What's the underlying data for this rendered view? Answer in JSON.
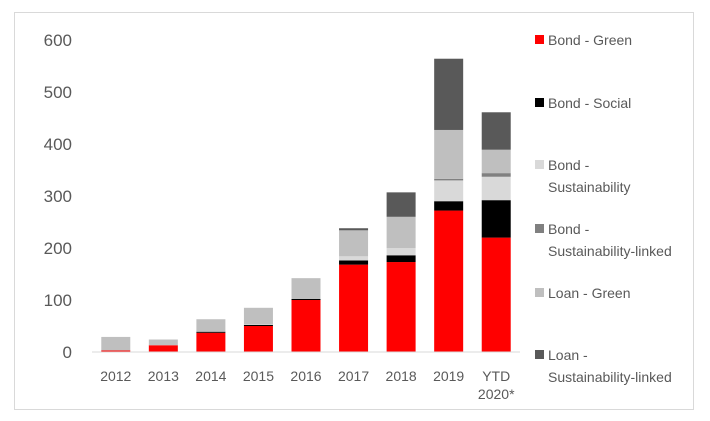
{
  "chart_data": {
    "type": "bar",
    "stacked": true,
    "title": "",
    "xlabel": "",
    "ylabel": "",
    "ylim": [
      0,
      600
    ],
    "yticks": [
      "0",
      "100",
      "200",
      "300",
      "400",
      "500",
      "600"
    ],
    "grid": false,
    "legend_position": "right",
    "categories": [
      "2012",
      "2013",
      "2014",
      "2015",
      "2016",
      "2017",
      "2018",
      "2019",
      "YTD 2020*"
    ],
    "series": [
      {
        "name": "Bond - Green",
        "color": "#ff0000",
        "values": [
          3,
          13,
          37,
          50,
          100,
          168,
          173,
          272,
          220
        ]
      },
      {
        "name": "Bond - Social",
        "color": "#000000",
        "values": [
          0,
          0,
          2,
          2,
          2,
          8,
          13,
          18,
          72
        ]
      },
      {
        "name": "Bond - Sustainability",
        "color": "#d9d9d9",
        "values": [
          0,
          0,
          0,
          1,
          0,
          8,
          14,
          40,
          45
        ]
      },
      {
        "name": "Bond - Sustainability-linked",
        "color": "#808080",
        "values": [
          0,
          0,
          0,
          0,
          0,
          0,
          0,
          3,
          7
        ]
      },
      {
        "name": "Loan - Green",
        "color": "#bfbfbf",
        "values": [
          26,
          11,
          24,
          32,
          40,
          50,
          60,
          94,
          45
        ]
      },
      {
        "name": "Loan - Sustainability-linked",
        "color": "#595959",
        "values": [
          0,
          0,
          0,
          0,
          0,
          4,
          47,
          137,
          72
        ]
      }
    ]
  }
}
